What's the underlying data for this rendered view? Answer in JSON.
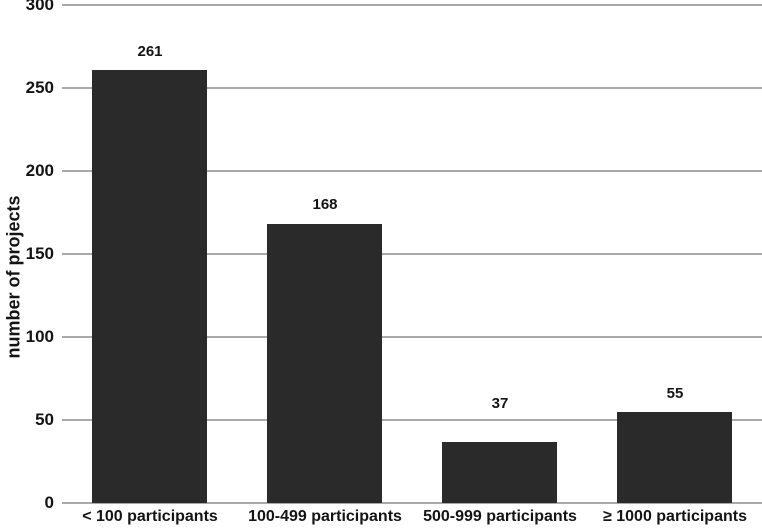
{
  "chart_data": {
    "type": "bar",
    "categories": [
      "< 100 participants",
      "100-499 participants",
      "500-999 participants",
      "≥ 1000 participants"
    ],
    "values": [
      261,
      168,
      37,
      55
    ],
    "value_labels": [
      "261",
      "168",
      "37",
      "55"
    ],
    "title": "",
    "xlabel": "",
    "ylabel": "number of projects",
    "ylim": [
      0,
      300
    ],
    "yticks": [
      0,
      50,
      100,
      150,
      200,
      250,
      300
    ],
    "grid": true,
    "legend": false,
    "bar_color": "#2a2a2a",
    "gridline_color": "#a9a9a9",
    "axis_line_color": "#a9a9a9",
    "text_color": "#141414",
    "background_color": "#ffffff"
  }
}
